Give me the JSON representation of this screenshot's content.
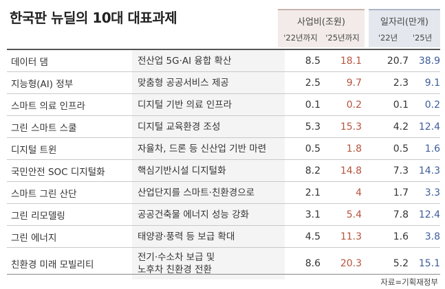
{
  "title": "한국판 뉴딜의 10대 대표과제",
  "source": "자료=기획재정부",
  "chart_data": {
    "type": "table",
    "column_groups": [
      {
        "label": "사업비(조원)",
        "columns": [
          "'22년까지",
          "'25년까지"
        ]
      },
      {
        "label": "일자리(만개)",
        "columns": [
          "'22년",
          "'25년"
        ]
      }
    ],
    "rows": [
      {
        "name": "데이터 댐",
        "desc": "전산업 5G·AI 융합 확산",
        "cost_22": "8.5",
        "cost_25": "18.1",
        "jobs_22": "20.7",
        "jobs_25": "38.9"
      },
      {
        "name": "지능형(AI) 정부",
        "desc": "맞춤형 공공서비스 제공",
        "cost_22": "2.5",
        "cost_25": "9.7",
        "jobs_22": "2.3",
        "jobs_25": "9.1"
      },
      {
        "name": "스마트 의료 인프라",
        "desc": "디지털 기반 의료 인프라",
        "cost_22": "0.1",
        "cost_25": "0.2",
        "jobs_22": "0.1",
        "jobs_25": "0.2"
      },
      {
        "name": "그린 스마트 스쿨",
        "desc": "디지털 교육환경 조성",
        "cost_22": "5.3",
        "cost_25": "15.3",
        "jobs_22": "4.2",
        "jobs_25": "12.4"
      },
      {
        "name": "디지털 트윈",
        "desc": "자율차, 드론 등 신산업 기반 마련",
        "cost_22": "0.5",
        "cost_25": "1.8",
        "jobs_22": "0.5",
        "jobs_25": "1.6"
      },
      {
        "name": "국민안전 SOC 디지털화",
        "desc": "핵심기반시설 디지털화",
        "cost_22": "8.2",
        "cost_25": "14.8",
        "jobs_22": "7.3",
        "jobs_25": "14.3"
      },
      {
        "name": "스마트 그린 산단",
        "desc": "산업단지를 스마트·친환경으로",
        "cost_22": "2.1",
        "cost_25": "4",
        "jobs_22": "1.7",
        "jobs_25": "3.3"
      },
      {
        "name": "그린 리모델링",
        "desc": "공공건축물 에너지 성능 강화",
        "cost_22": "3.1",
        "cost_25": "5.4",
        "jobs_22": "7.8",
        "jobs_25": "12.4"
      },
      {
        "name": "그린 에너지",
        "desc": "태양광·풍력 등 보급 확대",
        "cost_22": "4.5",
        "cost_25": "11.3",
        "jobs_22": "1.6",
        "jobs_25": "3.8"
      },
      {
        "name": "친환경 미래 모빌리티",
        "desc": "전기·수소차 보급 및\n노후차 친환경 전환",
        "cost_22": "8.6",
        "cost_25": "20.3",
        "jobs_22": "5.2",
        "jobs_25": "15.1"
      }
    ]
  },
  "colors": {
    "cost_2025": "#b5533c",
    "jobs_2025": "#3b5c9a",
    "cost_header_bg": "#f2ebe9",
    "jobs_header_bg": "#e4e8ee"
  }
}
